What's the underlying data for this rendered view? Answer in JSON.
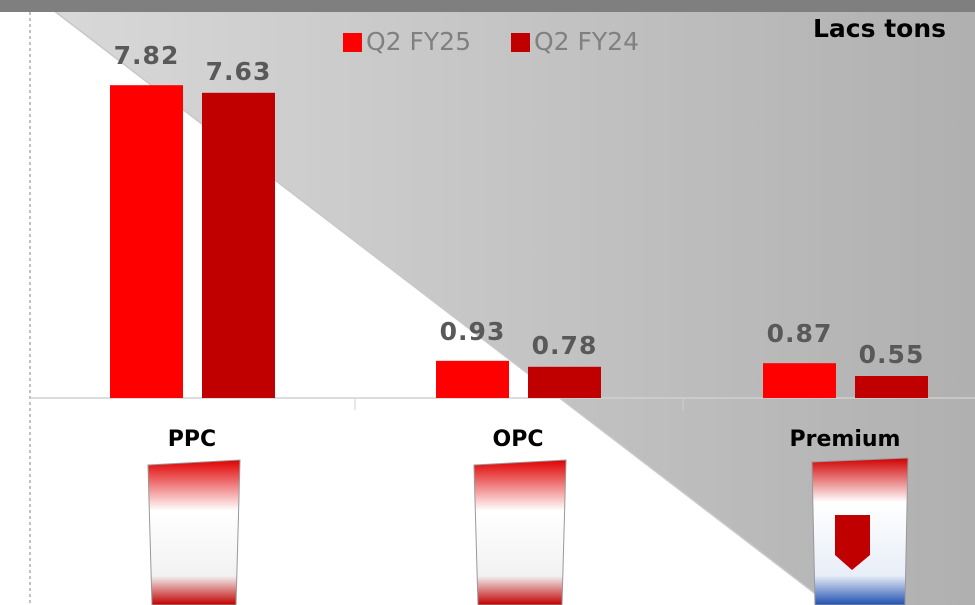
{
  "chart_data": {
    "type": "bar",
    "unit_label": "Lacs tons",
    "categories": [
      "PPC",
      "OPC",
      "Premium"
    ],
    "series": [
      {
        "name": "Q2 FY25",
        "color": "#ff0000",
        "values": [
          7.82,
          0.93,
          0.87
        ]
      },
      {
        "name": "Q2 FY24",
        "color": "#c00000",
        "values": [
          7.63,
          0.78,
          0.55
        ]
      }
    ]
  }
}
